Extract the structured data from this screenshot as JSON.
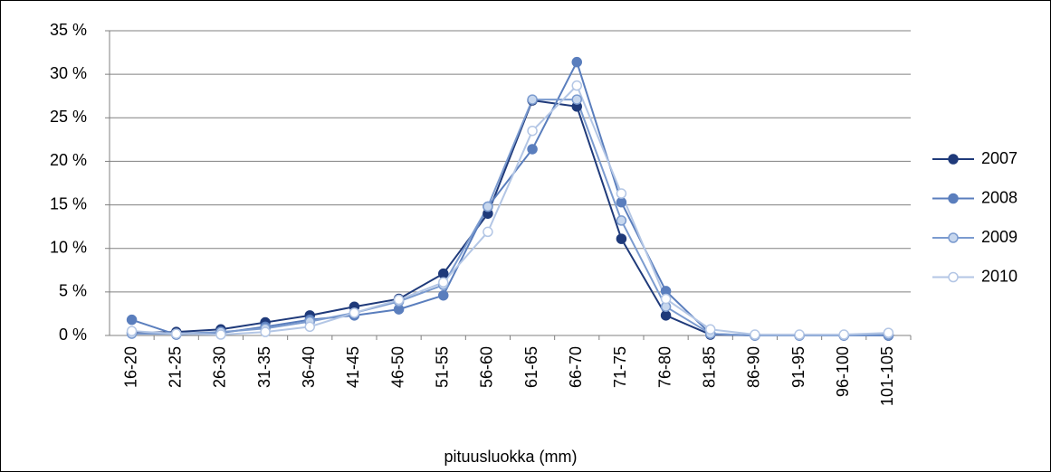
{
  "chart_data": {
    "type": "line",
    "x_label": "pituusluokka (mm)",
    "categories": [
      "16-20",
      "21-25",
      "26-30",
      "31-35",
      "36-40",
      "41-45",
      "46-50",
      "51-55",
      "56-60",
      "61-65",
      "66-70",
      "71-75",
      "76-80",
      "81-85",
      "86-90",
      "91-95",
      "96-100",
      "101-105"
    ],
    "series": [
      {
        "name": "2007",
        "color": "#1f3a7a",
        "marker_fill": "#1f3a7a",
        "values": [
          0.3,
          0.4,
          0.7,
          1.5,
          2.3,
          3.3,
          4.2,
          7.1,
          14.0,
          27.0,
          26.3,
          11.1,
          2.3,
          0.1,
          0,
          0,
          0,
          0
        ]
      },
      {
        "name": "2008",
        "color": "#5a7ebd",
        "marker_fill": "#5a7ebd",
        "values": [
          1.8,
          0.1,
          0.3,
          1.0,
          1.8,
          2.3,
          3.0,
          4.6,
          14.8,
          21.4,
          31.4,
          15.3,
          5.1,
          0.2,
          0,
          0,
          0,
          0
        ]
      },
      {
        "name": "2009",
        "color": "#7b9bcf",
        "marker_fill": "#c7d7ee",
        "values": [
          0.2,
          0.2,
          0.4,
          0.8,
          1.6,
          2.6,
          3.9,
          5.8,
          14.8,
          27.1,
          27.1,
          13.2,
          3.3,
          0.2,
          0,
          0,
          0,
          0.1
        ]
      },
      {
        "name": "2010",
        "color": "#b3c6e5",
        "marker_fill": "#ffffff",
        "values": [
          0.5,
          0.2,
          0.1,
          0.4,
          1.0,
          2.6,
          4.1,
          6.1,
          11.9,
          23.5,
          28.7,
          16.3,
          4.2,
          0.7,
          0.1,
          0.1,
          0.1,
          0.3
        ]
      }
    ],
    "ylim": [
      0,
      35
    ],
    "yticks": [
      {
        "value": 0,
        "label": "0 %"
      },
      {
        "value": 5,
        "label": "5 %"
      },
      {
        "value": 10,
        "label": "10 %"
      },
      {
        "value": 15,
        "label": "15 %"
      },
      {
        "value": 20,
        "label": "20 %"
      },
      {
        "value": 25,
        "label": "25 %"
      },
      {
        "value": 30,
        "label": "30 %"
      },
      {
        "value": 35,
        "label": "35 %"
      }
    ],
    "grid": true,
    "legend": "right"
  }
}
